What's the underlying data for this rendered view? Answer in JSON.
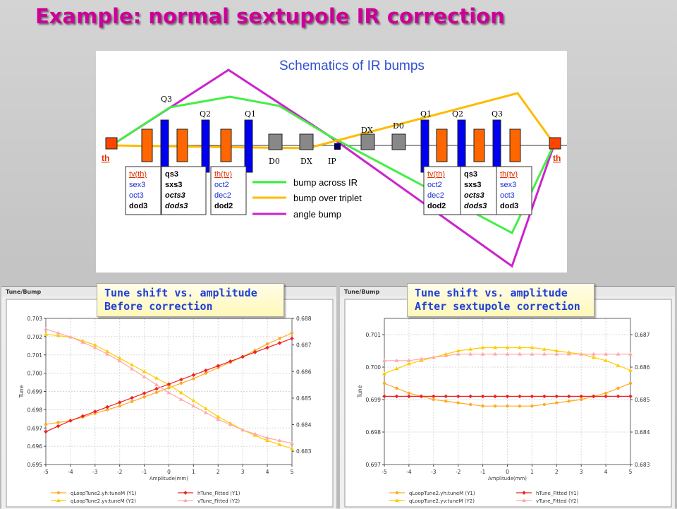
{
  "slide": {
    "title": "Example: normal sextupole IR correction"
  },
  "schematic": {
    "title": "Schematics of IR bumps",
    "quad_labels_left": [
      "Q3",
      "Q2",
      "Q1"
    ],
    "quad_labels_right": [
      "Q1",
      "Q2",
      "Q3"
    ],
    "magnet_labels": {
      "d0_left": "D0",
      "dx_left": "DX",
      "ip": "IP",
      "dx_right": "DX",
      "d0_right": "D0"
    },
    "corrector_left": "th",
    "corrector_right": "th",
    "corrector_boxes_left": [
      {
        "lines": [
          "tv(th)",
          "sex3",
          "oct3",
          "dod3"
        ]
      },
      {
        "lines": [
          "qs3",
          "sxs3",
          "octs3",
          "dods3"
        ]
      },
      {
        "lines": [
          "th(tv)",
          "oct2",
          "dec2",
          "dod2"
        ]
      }
    ],
    "corrector_boxes_right": [
      {
        "lines": [
          "tv(th)",
          "oct2",
          "dec2",
          "dod2"
        ]
      },
      {
        "lines": [
          "qs3",
          "sxs3",
          "octs3",
          "dods3"
        ]
      },
      {
        "lines": [
          "th(tv)",
          "sex3",
          "oct3",
          "dod3"
        ]
      }
    ],
    "legend": [
      {
        "label": "bump across IR",
        "color": "#33ee33"
      },
      {
        "label": "bump over triplet",
        "color": "#ffbb00"
      },
      {
        "label": "angle bump",
        "color": "#cc22cc"
      }
    ],
    "colors": {
      "quad": "#0000ee",
      "corrector": "#ff6600",
      "dipole": "#888888",
      "kicker": "#ff4400"
    }
  },
  "callouts": {
    "before": [
      "Tune shift vs. amplitude",
      "Before correction"
    ],
    "after": [
      "Tune shift vs. amplitude",
      "After sextupole correction"
    ]
  },
  "chart_data": [
    {
      "type": "line",
      "window_title": "Tune/Bump",
      "xlabel": "Amplitude(mm)",
      "ylabel": "Tune",
      "xlim": [
        -5,
        5
      ],
      "x_ticks": [
        -5,
        -4,
        -3,
        -2,
        -1,
        0,
        1,
        2,
        3,
        4,
        5
      ],
      "ylim": [
        0.695,
        0.703
      ],
      "y_ticks": [
        "0.695",
        "0.696",
        "0.697",
        "0.698",
        "0.699",
        "0.700",
        "0.701",
        "0.702",
        "0.703"
      ],
      "y2lim": [
        0.6825,
        0.688
      ],
      "y2_ticks": [
        "0.683",
        "0.684",
        "0.685",
        "0.686",
        "0.687",
        "0.688"
      ],
      "grid": true,
      "series": [
        {
          "name": "qLoopTune2.yh:tuneM (Y1)",
          "color": "#ffaa22",
          "axis": "y1",
          "marker": "circle",
          "x": [
            -5,
            -4,
            -3,
            -2,
            -1,
            0,
            1,
            2,
            3,
            4,
            5
          ],
          "y": [
            0.6972,
            0.6974,
            0.6978,
            0.6982,
            0.6987,
            0.6992,
            0.6997,
            0.7003,
            0.7009,
            0.7016,
            0.7022
          ]
        },
        {
          "name": "qLoopTune2.yv:tuneM (Y2)",
          "color": "#ffcc00",
          "axis": "y2",
          "marker": "triangle",
          "x": [
            -5,
            -4,
            -3,
            -2,
            -1,
            0,
            1,
            2,
            3,
            4,
            5
          ],
          "y": [
            0.6874,
            0.6873,
            0.687,
            0.6865,
            0.686,
            0.6855,
            0.6849,
            0.6843,
            0.6838,
            0.6834,
            0.6831
          ]
        },
        {
          "name": "hTune_Fitted (Y1)",
          "color": "#ee2222",
          "axis": "y1",
          "marker": "star",
          "x": [
            -5,
            -4,
            -3,
            -2,
            -1,
            0,
            1,
            2,
            3,
            4,
            5
          ],
          "y": [
            0.6968,
            0.6974,
            0.6979,
            0.6984,
            0.6989,
            0.6994,
            0.6999,
            0.7004,
            0.7009,
            0.7014,
            0.7019
          ]
        },
        {
          "name": "vTune_Fitted (Y2)",
          "color": "#ffaaaa",
          "axis": "y2",
          "marker": "triangle",
          "x": [
            -5,
            -4,
            -3,
            -2,
            -1,
            0,
            1,
            2,
            3,
            4,
            5
          ],
          "y": [
            0.6876,
            0.6873,
            0.6869,
            0.6864,
            0.6858,
            0.6852,
            0.6847,
            0.6842,
            0.6838,
            0.6835,
            0.6833
          ]
        }
      ]
    },
    {
      "type": "line",
      "window_title": "Tune/Bump",
      "xlabel": "Amplitude(mm)",
      "ylabel": "Tune",
      "xlim": [
        -5,
        5
      ],
      "x_ticks": [
        -5,
        -4,
        -3,
        -2,
        -1,
        0,
        1,
        2,
        3,
        4,
        5
      ],
      "ylim": [
        0.697,
        0.7015
      ],
      "y_ticks": [
        "0.697",
        "0.698",
        "0.699",
        "0.700",
        "0.701"
      ],
      "y2lim": [
        0.683,
        0.6875
      ],
      "y2_ticks": [
        "0.683",
        "0.684",
        "0.685",
        "0.686",
        "0.687"
      ],
      "grid": true,
      "series": [
        {
          "name": "qLoopTune2.yh:tuneM (Y1)",
          "color": "#ffaa22",
          "axis": "y1",
          "marker": "circle",
          "x": [
            -5,
            -4,
            -3,
            -2,
            -1,
            0,
            1,
            2,
            3,
            4,
            5
          ],
          "y": [
            0.6995,
            0.6992,
            0.699,
            0.6989,
            0.6988,
            0.6988,
            0.6988,
            0.6989,
            0.699,
            0.6992,
            0.6995
          ]
        },
        {
          "name": "qLoopTune2.yv:tuneM (Y2)",
          "color": "#ffcc00",
          "axis": "y2",
          "marker": "triangle",
          "x": [
            -5,
            -4,
            -3,
            -2,
            -1,
            0,
            1,
            2,
            3,
            4,
            5
          ],
          "y": [
            0.6858,
            0.6861,
            0.6863,
            0.6865,
            0.6866,
            0.6866,
            0.6866,
            0.6865,
            0.6864,
            0.6862,
            0.6859
          ]
        },
        {
          "name": "hTune_Fitted (Y1)",
          "color": "#ee2222",
          "axis": "y1",
          "marker": "star",
          "x": [
            -5,
            -4,
            -3,
            -2,
            -1,
            0,
            1,
            2,
            3,
            4,
            5
          ],
          "y": [
            0.6991,
            0.6991,
            0.6991,
            0.6991,
            0.6991,
            0.6991,
            0.6991,
            0.6991,
            0.6991,
            0.6991,
            0.6991
          ]
        },
        {
          "name": "vTune_Fitted (Y2)",
          "color": "#ffaaaa",
          "axis": "y2",
          "marker": "triangle",
          "x": [
            -5,
            -4,
            -3,
            -2,
            -1,
            0,
            1,
            2,
            3,
            4,
            5
          ],
          "y": [
            0.6862,
            0.6862,
            0.6863,
            0.6864,
            0.6864,
            0.6864,
            0.6864,
            0.6864,
            0.6864,
            0.6864,
            0.6864
          ]
        }
      ]
    }
  ]
}
